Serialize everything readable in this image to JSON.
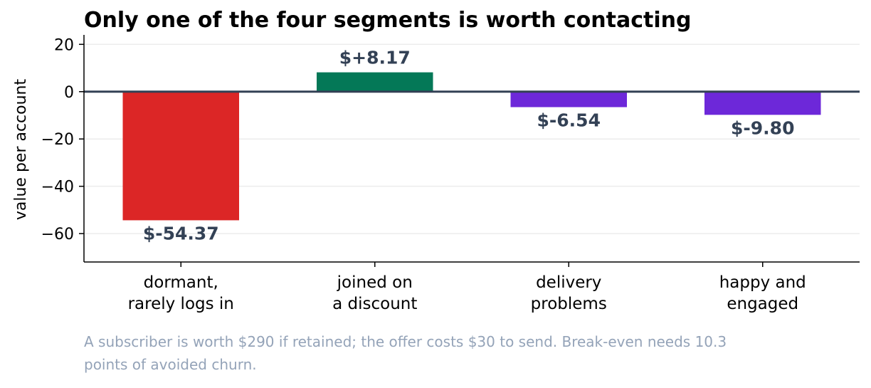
{
  "chart_data": {
    "type": "bar",
    "title": "Only one of the four segments is worth contacting",
    "ylabel": "value per account",
    "xlabel": "",
    "ylim": [
      -72,
      24
    ],
    "yticks": [
      20,
      0,
      -20,
      -40,
      -60
    ],
    "ytick_labels": [
      "20",
      "0",
      "−20",
      "−40",
      "−60"
    ],
    "categories": [
      [
        "dormant,",
        "rarely logs in"
      ],
      [
        "joined on",
        "a discount"
      ],
      [
        "delivery",
        "problems"
      ],
      [
        "happy and",
        "engaged"
      ]
    ],
    "values": [
      -54.37,
      8.17,
      -6.54,
      -9.8
    ],
    "data_labels": [
      "$-54.37",
      "$+8.17",
      "$-6.54",
      "$-9.80"
    ],
    "colors": [
      "#dc2626",
      "#047857",
      "#6d28d9",
      "#6d28d9"
    ],
    "grid": true,
    "note": [
      "A subscriber is worth $290 if retained; the offer costs $30 to send. Break-even needs 10.3",
      "points of avoided churn."
    ]
  }
}
